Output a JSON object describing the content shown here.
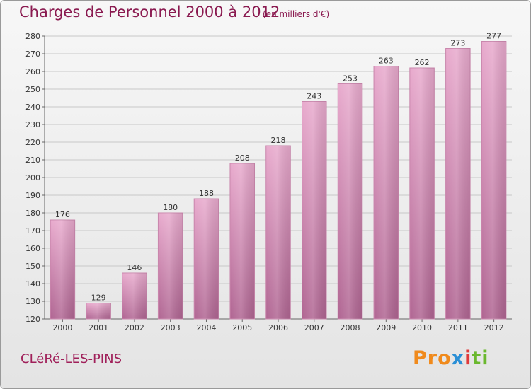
{
  "chart_data": {
    "type": "bar",
    "title": "Charges de Personnel 2000 à 2012",
    "subtitle": "(en milliers d'€)",
    "categories": [
      "2000",
      "2001",
      "2002",
      "2003",
      "2004",
      "2005",
      "2006",
      "2007",
      "2008",
      "2009",
      "2010",
      "2011",
      "2012"
    ],
    "values": [
      176,
      129,
      146,
      180,
      188,
      208,
      218,
      243,
      253,
      263,
      262,
      273,
      277
    ],
    "ylim": [
      120,
      280
    ],
    "yticks": [
      120,
      130,
      140,
      150,
      160,
      170,
      180,
      190,
      200,
      210,
      220,
      230,
      240,
      250,
      260,
      270,
      280
    ],
    "grid": true,
    "bar_color": "#d98ab4",
    "xlabel": "",
    "ylabel": ""
  },
  "footer": {
    "commune": "CLéRé-LES-PINS",
    "logo": [
      "Pro",
      "x",
      "i",
      "ti"
    ]
  },
  "colors": {
    "title": "#8a1a50",
    "commune": "#a0205a",
    "bar_top": "#e6a8cb",
    "bar_bottom": "#b06590"
  }
}
